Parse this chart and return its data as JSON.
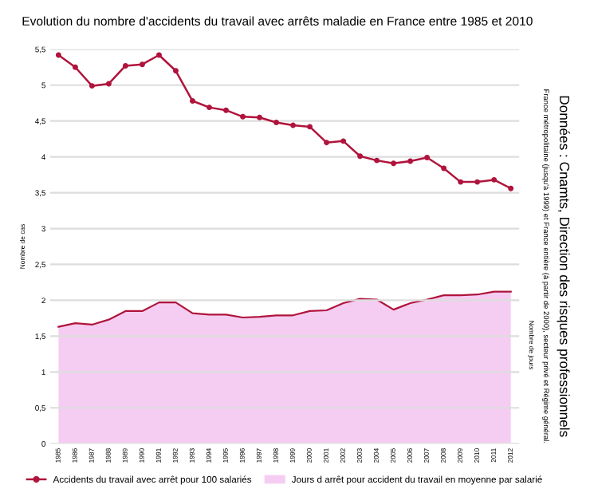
{
  "chart_data": {
    "type": "line",
    "title": "Evolution du nombre d'accidents du travail avec arrêts maladie en France entre 1985 et 2010",
    "ylabel": "Nombre de cas",
    "y2label": "Nombre de jours",
    "categories": [
      "1985",
      "1986",
      "1987",
      "1988",
      "1989",
      "1990",
      "1991",
      "1992",
      "1993",
      "1994",
      "1995",
      "1996",
      "1997",
      "1998",
      "1999",
      "2000",
      "2001",
      "2002",
      "2003",
      "2004",
      "2005",
      "2006",
      "2007",
      "2008",
      "2009",
      "2010",
      "2011",
      "2012"
    ],
    "series": [
      {
        "name": "Accidents du travail avec arrêt pour 100 salariés",
        "color": "#b0143c",
        "marker": "circle",
        "values": [
          5.42,
          5.25,
          4.99,
          5.02,
          5.27,
          5.29,
          5.42,
          5.2,
          4.78,
          4.69,
          4.65,
          4.56,
          4.55,
          4.48,
          4.44,
          4.42,
          4.2,
          4.22,
          4.01,
          3.95,
          3.91,
          3.94,
          3.99,
          3.84,
          3.65,
          3.65,
          3.68,
          3.56
        ]
      },
      {
        "name": "Jours d arrêt pour accident du travail en moyenne par salarié",
        "type": "area",
        "color": "#f5cdf2",
        "values": [
          1.63,
          1.68,
          1.66,
          1.73,
          1.85,
          1.85,
          1.97,
          1.97,
          1.82,
          1.8,
          1.8,
          1.76,
          1.77,
          1.79,
          1.79,
          1.85,
          1.86,
          1.96,
          2.02,
          2.01,
          1.87,
          1.96,
          2.01,
          2.07,
          2.07,
          2.08,
          2.12,
          2.12
        ]
      }
    ],
    "ylim": [
      0,
      5.5
    ],
    "yticks": [
      0,
      {
        "value": 0.5,
        "label": "0,5"
      },
      1,
      {
        "value": 1.5,
        "label": "1,5"
      },
      2,
      {
        "value": 2.5,
        "label": "2,5"
      },
      3,
      {
        "value": 3.5,
        "label": "3,5"
      },
      4,
      {
        "value": 4.5,
        "label": "4,5"
      },
      5,
      {
        "value": 5.5,
        "label": "5,5"
      }
    ],
    "grid": "y",
    "legend": "bottom",
    "annotations": [
      "Données : Cnamts, Direction des risques professionnels",
      "France métropolitaine (jusqu'à 1999) et France entière (à partir de 2000), secteur privé et Régime général."
    ]
  }
}
